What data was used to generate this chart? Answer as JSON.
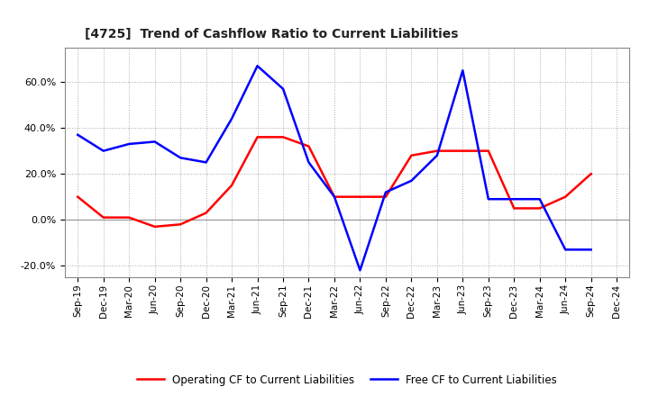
{
  "title": "[4725]  Trend of Cashflow Ratio to Current Liabilities",
  "x_labels": [
    "Sep-19",
    "Dec-19",
    "Mar-20",
    "Jun-20",
    "Sep-20",
    "Dec-20",
    "Mar-21",
    "Jun-21",
    "Sep-21",
    "Dec-21",
    "Mar-22",
    "Jun-22",
    "Sep-22",
    "Dec-22",
    "Mar-23",
    "Jun-23",
    "Sep-23",
    "Dec-23",
    "Mar-24",
    "Jun-24",
    "Sep-24",
    "Dec-24"
  ],
  "operating_cf": [
    0.1,
    0.01,
    0.01,
    -0.03,
    -0.02,
    0.03,
    0.15,
    0.36,
    0.36,
    0.32,
    0.1,
    0.1,
    0.1,
    0.28,
    0.3,
    0.3,
    0.3,
    0.05,
    0.05,
    0.1,
    0.2,
    null
  ],
  "free_cf": [
    0.37,
    0.3,
    0.33,
    0.34,
    0.27,
    0.25,
    0.44,
    0.67,
    0.57,
    0.25,
    0.1,
    -0.22,
    0.12,
    0.17,
    0.28,
    0.65,
    0.09,
    0.09,
    0.09,
    -0.13,
    -0.13,
    null
  ],
  "operating_cf_color": "#ff0000",
  "free_cf_color": "#0000ff",
  "ylim": [
    -0.25,
    0.75
  ],
  "yticks": [
    -0.2,
    0.0,
    0.2,
    0.4,
    0.6
  ],
  "background_color": "#ffffff",
  "grid_color": "#aaaaaa",
  "legend_labels": [
    "Operating CF to Current Liabilities",
    "Free CF to Current Liabilities"
  ]
}
